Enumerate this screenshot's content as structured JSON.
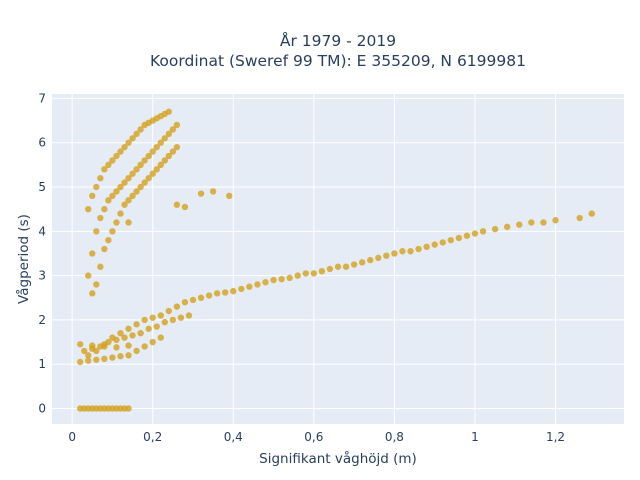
{
  "chart_data": {
    "type": "scatter",
    "title_lines": [
      "År 1979 - 2019",
      "Koordinat (Sweref 99 TM): E 355209, N 6199981"
    ],
    "xlabel": "Signifikant våghöjd (m)",
    "ylabel": "Vågperiod (s)",
    "xlim": [
      -0.05,
      1.37
    ],
    "ylim": [
      -0.35,
      7.1
    ],
    "xticks": [
      0,
      0.2,
      0.4,
      0.6,
      0.8,
      1,
      1.2
    ],
    "xtick_labels": [
      "0",
      "0,2",
      "0,4",
      "0,6",
      "0,8",
      "1",
      "1,2"
    ],
    "yticks": [
      0,
      1,
      2,
      3,
      4,
      5,
      6,
      7
    ],
    "ytick_labels": [
      "0",
      "1",
      "2",
      "3",
      "4",
      "5",
      "6",
      "7"
    ],
    "grid": true,
    "marker_color": "#d4a11e",
    "series": [
      {
        "x": [
          0.02,
          0.03,
          0.04,
          0.05,
          0.06,
          0.07,
          0.08,
          0.09,
          0.1,
          0.11,
          0.12,
          0.13,
          0.14,
          0.02,
          0.05,
          0.08,
          0.11,
          0.14,
          0.02,
          0.04,
          0.06,
          0.08,
          0.1,
          0.12,
          0.14,
          0.16,
          0.18,
          0.2,
          0.22,
          0.03,
          0.05,
          0.07,
          0.09,
          0.11,
          0.13,
          0.15,
          0.17,
          0.19,
          0.21,
          0.23,
          0.25,
          0.27,
          0.29,
          0.04,
          0.06,
          0.08,
          0.1,
          0.12,
          0.14,
          0.16,
          0.18,
          0.2,
          0.22,
          0.24,
          0.26,
          0.28,
          0.3,
          0.32,
          0.34,
          0.36,
          0.38,
          0.4,
          0.42,
          0.44,
          0.46,
          0.48,
          0.5,
          0.52,
          0.54,
          0.56,
          0.58,
          0.6,
          0.62,
          0.64,
          0.66,
          0.68,
          0.7,
          0.72,
          0.74,
          0.76,
          0.78,
          0.8,
          0.82,
          0.84,
          0.86,
          0.88,
          0.9,
          0.92,
          0.94,
          0.96,
          0.98,
          1.0,
          1.02,
          1.05,
          1.08,
          1.11,
          1.14,
          1.17,
          1.2,
          1.26,
          1.29,
          0.04,
          0.05,
          0.06,
          0.07,
          0.08,
          0.09,
          0.1,
          0.11,
          0.12,
          0.13,
          0.14,
          0.15,
          0.16,
          0.17,
          0.18,
          0.19,
          0.2,
          0.21,
          0.22,
          0.23,
          0.24,
          0.25,
          0.26,
          0.04,
          0.05,
          0.06,
          0.07,
          0.08,
          0.09,
          0.1,
          0.11,
          0.12,
          0.13,
          0.14,
          0.15,
          0.16,
          0.17,
          0.18,
          0.19,
          0.2,
          0.21,
          0.22,
          0.23,
          0.24,
          0.05,
          0.06,
          0.07,
          0.08,
          0.09,
          0.1,
          0.11,
          0.12,
          0.13,
          0.14,
          0.15,
          0.16,
          0.17,
          0.18,
          0.19,
          0.2,
          0.21,
          0.22,
          0.23,
          0.24,
          0.25,
          0.26,
          0.28,
          0.32,
          0.35,
          0.39,
          0.26,
          0.14
        ],
        "y": [
          0,
          0,
          0,
          0,
          0,
          0,
          0,
          0,
          0,
          0,
          0,
          0,
          0,
          1.45,
          1.42,
          1.4,
          1.38,
          1.42,
          1.05,
          1.08,
          1.1,
          1.12,
          1.15,
          1.18,
          1.2,
          1.3,
          1.4,
          1.5,
          1.6,
          1.3,
          1.35,
          1.4,
          1.5,
          1.55,
          1.6,
          1.65,
          1.7,
          1.8,
          1.85,
          1.95,
          2.0,
          2.05,
          2.1,
          1.2,
          1.3,
          1.45,
          1.6,
          1.7,
          1.8,
          1.9,
          2.0,
          2.05,
          2.1,
          2.2,
          2.3,
          2.4,
          2.45,
          2.5,
          2.55,
          2.6,
          2.62,
          2.65,
          2.7,
          2.75,
          2.8,
          2.85,
          2.9,
          2.92,
          2.95,
          3.0,
          3.05,
          3.05,
          3.1,
          3.15,
          3.2,
          3.2,
          3.25,
          3.3,
          3.35,
          3.4,
          3.45,
          3.5,
          3.55,
          3.55,
          3.6,
          3.65,
          3.7,
          3.75,
          3.8,
          3.85,
          3.9,
          3.95,
          4.0,
          4.05,
          4.1,
          4.15,
          4.2,
          4.2,
          4.25,
          4.3,
          4.4,
          3.0,
          3.5,
          4.0,
          4.3,
          4.5,
          4.7,
          4.8,
          4.9,
          5.0,
          5.1,
          5.2,
          5.3,
          5.4,
          5.5,
          5.6,
          5.7,
          5.8,
          5.9,
          6.0,
          6.1,
          6.2,
          6.3,
          6.4,
          4.5,
          4.8,
          5.0,
          5.2,
          5.4,
          5.5,
          5.6,
          5.7,
          5.8,
          5.9,
          6.0,
          6.1,
          6.2,
          6.3,
          6.4,
          6.45,
          6.5,
          6.55,
          6.6,
          6.65,
          6.7,
          2.6,
          2.8,
          3.2,
          3.6,
          3.8,
          4.0,
          4.2,
          4.4,
          4.6,
          4.7,
          4.8,
          4.9,
          5.0,
          5.1,
          5.2,
          5.3,
          5.4,
          5.5,
          5.6,
          5.7,
          5.8,
          5.9,
          4.55,
          4.85,
          4.9,
          4.8,
          4.6,
          4.2
        ]
      }
    ]
  }
}
